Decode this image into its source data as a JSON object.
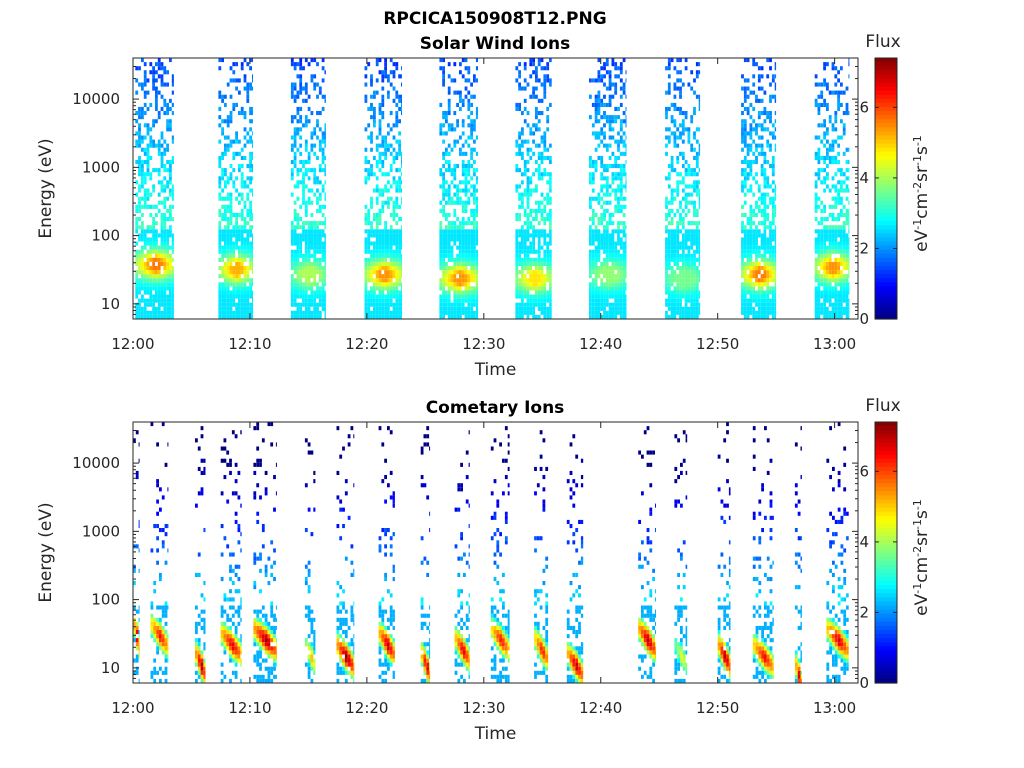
{
  "figure": {
    "filename_title": "RPCICA150908T12.PNG",
    "colormap": "jet"
  },
  "chart_data": [
    {
      "type": "heatmap",
      "title": "Solar Wind Ions",
      "xlabel": "Time",
      "ylabel": "Energy (eV)",
      "x_ticks": [
        "12:00",
        "12:10",
        "12:20",
        "12:30",
        "12:40",
        "12:50",
        "13:00"
      ],
      "xlim_minutes": [
        0,
        62
      ],
      "y_scale": "log",
      "y_ticks": [
        "10",
        "100",
        "1000",
        "10000"
      ],
      "ylim": [
        6,
        40000
      ],
      "colorbar": {
        "title": "Flux",
        "label": "eV-1cm-2sr-1s-1",
        "ticks": [
          "0",
          "2",
          "4",
          "6"
        ],
        "range": [
          0,
          7.4
        ]
      },
      "bursts": [
        {
          "t_start": 0.2,
          "t_end": 3.5,
          "peak_energy": 35,
          "peak_flux": 5.6
        },
        {
          "t_start": 7.3,
          "t_end": 10.2,
          "peak_energy": 30,
          "peak_flux": 5.2
        },
        {
          "t_start": 13.5,
          "t_end": 16.5,
          "peak_energy": 25,
          "peak_flux": 4.0
        },
        {
          "t_start": 19.8,
          "t_end": 23.0,
          "peak_energy": 25,
          "peak_flux": 5.4
        },
        {
          "t_start": 26.2,
          "t_end": 29.5,
          "peak_energy": 22,
          "peak_flux": 5.4
        },
        {
          "t_start": 32.7,
          "t_end": 35.8,
          "peak_energy": 22,
          "peak_flux": 4.8
        },
        {
          "t_start": 39.0,
          "t_end": 42.2,
          "peak_energy": 25,
          "peak_flux": 3.8
        },
        {
          "t_start": 45.5,
          "t_end": 48.5,
          "peak_energy": 22,
          "peak_flux": 3.6
        },
        {
          "t_start": 52.0,
          "t_end": 55.0,
          "peak_energy": 25,
          "peak_flux": 5.6
        },
        {
          "t_start": 58.3,
          "t_end": 61.2,
          "peak_energy": 32,
          "peak_flux": 5.4
        }
      ]
    },
    {
      "type": "heatmap",
      "title": "Cometary Ions",
      "xlabel": "Time",
      "ylabel": "Energy (eV)",
      "x_ticks": [
        "12:00",
        "12:10",
        "12:20",
        "12:30",
        "12:40",
        "12:50",
        "13:00"
      ],
      "xlim_minutes": [
        0,
        62
      ],
      "y_scale": "log",
      "y_ticks": [
        "10",
        "100",
        "1000",
        "10000"
      ],
      "ylim": [
        6,
        40000
      ],
      "colorbar": {
        "title": "Flux",
        "label": "eV-1cm-2sr-1s-1",
        "ticks": [
          "0",
          "2",
          "4",
          "6"
        ],
        "range": [
          0,
          7.4
        ]
      },
      "bursts": [
        {
          "t_start": 0.0,
          "t_end": 0.5,
          "peak_energy": 40,
          "peak_flux": 7.0
        },
        {
          "t_start": 1.5,
          "t_end": 3.0,
          "peak_energy": 40,
          "peak_flux": 6.5
        },
        {
          "t_start": 5.3,
          "t_end": 6.2,
          "peak_energy": 15,
          "peak_flux": 7.2
        },
        {
          "t_start": 7.5,
          "t_end": 9.3,
          "peak_energy": 30,
          "peak_flux": 6.8
        },
        {
          "t_start": 10.3,
          "t_end": 12.3,
          "peak_energy": 35,
          "peak_flux": 7.2
        },
        {
          "t_start": 14.7,
          "t_end": 15.6,
          "peak_energy": 20,
          "peak_flux": 5.2
        },
        {
          "t_start": 17.4,
          "t_end": 18.9,
          "peak_energy": 20,
          "peak_flux": 7.3
        },
        {
          "t_start": 21.0,
          "t_end": 22.4,
          "peak_energy": 30,
          "peak_flux": 7.0
        },
        {
          "t_start": 24.6,
          "t_end": 25.4,
          "peak_energy": 15,
          "peak_flux": 7.0
        },
        {
          "t_start": 27.5,
          "t_end": 28.8,
          "peak_energy": 25,
          "peak_flux": 6.8
        },
        {
          "t_start": 30.6,
          "t_end": 32.2,
          "peak_energy": 35,
          "peak_flux": 6.5
        },
        {
          "t_start": 34.3,
          "t_end": 35.5,
          "peak_energy": 25,
          "peak_flux": 6.5
        },
        {
          "t_start": 37.1,
          "t_end": 38.5,
          "peak_energy": 15,
          "peak_flux": 7.0
        },
        {
          "t_start": 43.2,
          "t_end": 44.7,
          "peak_energy": 35,
          "peak_flux": 7.1
        },
        {
          "t_start": 46.3,
          "t_end": 47.4,
          "peak_energy": 20,
          "peak_flux": 4.6
        },
        {
          "t_start": 50.0,
          "t_end": 51.1,
          "peak_energy": 20,
          "peak_flux": 7.2
        },
        {
          "t_start": 53.0,
          "t_end": 54.8,
          "peak_energy": 20,
          "peak_flux": 6.6
        },
        {
          "t_start": 56.6,
          "t_end": 57.2,
          "peak_energy": 10,
          "peak_flux": 7.0
        },
        {
          "t_start": 59.3,
          "t_end": 61.2,
          "peak_energy": 35,
          "peak_flux": 6.8
        }
      ]
    }
  ]
}
